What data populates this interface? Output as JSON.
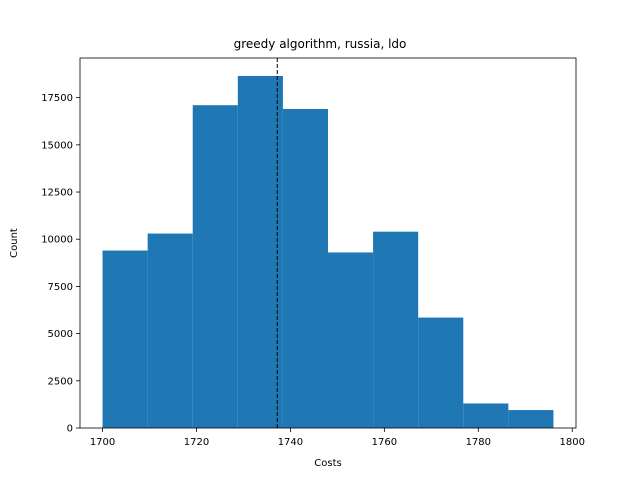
{
  "chart_data": {
    "type": "bar",
    "title": "greedy algorithm, russia, ldo",
    "xlabel": "Costs",
    "ylabel": "Count",
    "bin_edges": [
      1700,
      1709.6,
      1719.2,
      1728.8,
      1738.4,
      1748.0,
      1757.6,
      1767.2,
      1776.8,
      1786.4,
      1796.0
    ],
    "values": [
      9400,
      10300,
      17100,
      18650,
      16900,
      9300,
      10400,
      5850,
      1300,
      950
    ],
    "xlim": [
      1695.2,
      1800.8
    ],
    "ylim": [
      0,
      19600
    ],
    "x_ticks": [
      "1700",
      "1720",
      "1740",
      "1760",
      "1780",
      "1800"
    ],
    "y_ticks": [
      "0",
      "2500",
      "5000",
      "7500",
      "10000",
      "12500",
      "15000",
      "17500"
    ],
    "mean_line_x": 1737.2,
    "colors": {
      "bar": "#1f77b4",
      "mean_line": "#000000"
    },
    "grid": false,
    "legend": "none"
  }
}
